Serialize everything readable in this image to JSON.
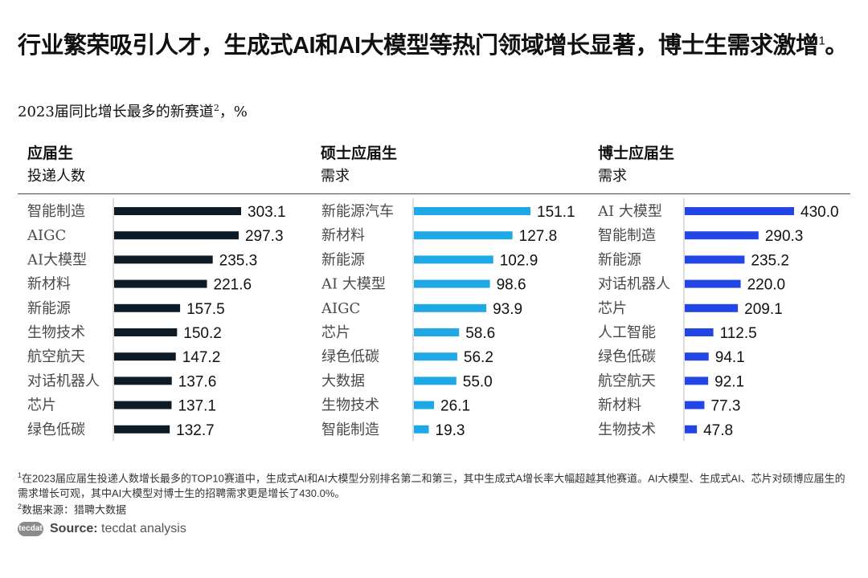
{
  "title": {
    "text": "行业繁荣吸引人才，生成式AI和AI大模型等热门领域增长显著，博士生需求激增",
    "sup": "1",
    "end": "。"
  },
  "subtitle": {
    "text": "2023届同比增长最多的新赛道",
    "sup": "2",
    "unit": "，%"
  },
  "panels": [
    {
      "h1": "应届生",
      "h2": "投递人数"
    },
    {
      "h1": "硕士应届生",
      "h2": "需求"
    },
    {
      "h1": "博士应届生",
      "h2": "需求"
    }
  ],
  "chart_data": [
    {
      "type": "bar",
      "orientation": "horizontal",
      "title": "应届生 投递人数",
      "color": "#0d1b26",
      "categories": [
        "智能制造",
        "AIGC",
        "AI大模型",
        "新材料",
        "新能源",
        "生物技术",
        "航空航天",
        "对话机器人",
        "芯片",
        "绿色低碳"
      ],
      "values": [
        303.1,
        297.3,
        235.3,
        221.6,
        157.5,
        150.2,
        147.2,
        137.6,
        137.1,
        132.7
      ],
      "labels": [
        "303.1",
        "297.3",
        "235.3",
        "221.6",
        "157.5",
        "150.2",
        "147.2",
        "137.6",
        "137.1",
        "132.7"
      ],
      "xlim": [
        0,
        320
      ]
    },
    {
      "type": "bar",
      "orientation": "horizontal",
      "title": "硕士应届生 需求",
      "color": "#1fa8e6",
      "categories": [
        "新能源汽车",
        "新材料",
        "新能源",
        "AI 大模型",
        "AIGC",
        "芯片",
        "绿色低碳",
        "大数据",
        "生物技术",
        "智能制造"
      ],
      "values": [
        151.1,
        127.8,
        102.9,
        98.6,
        93.9,
        58.6,
        56.2,
        55.0,
        26.1,
        19.3
      ],
      "labels": [
        "151.1",
        "127.8",
        "102.9",
        "98.6",
        "93.9",
        "58.6",
        "56.2",
        "55.0",
        "26.1",
        "19.3"
      ],
      "xlim": [
        0,
        160
      ]
    },
    {
      "type": "bar",
      "orientation": "horizontal",
      "title": "博士应届生 需求",
      "color": "#2246e6",
      "categories": [
        "AI 大模型",
        "智能制造",
        "新能源",
        "对话机器人",
        "芯片",
        "人工智能",
        "绿色低碳",
        "航空航天",
        "新材料",
        "生物技术"
      ],
      "values": [
        430.0,
        290.3,
        235.2,
        220.0,
        209.1,
        112.5,
        94.1,
        92.1,
        77.3,
        47.8
      ],
      "labels": [
        "430.0",
        "290.3",
        "235.2",
        "220.0",
        "209.1",
        "112.5",
        "94.1",
        "92.1",
        "77.3",
        "47.8"
      ],
      "xlim": [
        0,
        450
      ]
    }
  ],
  "footnotes": {
    "fn1_sup": "1",
    "fn1": "在2023届应届生投递人数增长最多的TOP10赛道中，生成式AI和AI大模型分别排名第二和第三，其中生成式A增长率大幅超越其他赛道。AI大模型、生成式AI、芯片对硕博应届生的需求增长可观，其中AI大模型对博士生的招聘需求更是增长了430.0%。",
    "fn2_sup": "2",
    "fn2": "数据来源：猎聘大数据"
  },
  "source": {
    "logo": "tecdat",
    "label": "Source:",
    "text": " tecdat analysis"
  }
}
